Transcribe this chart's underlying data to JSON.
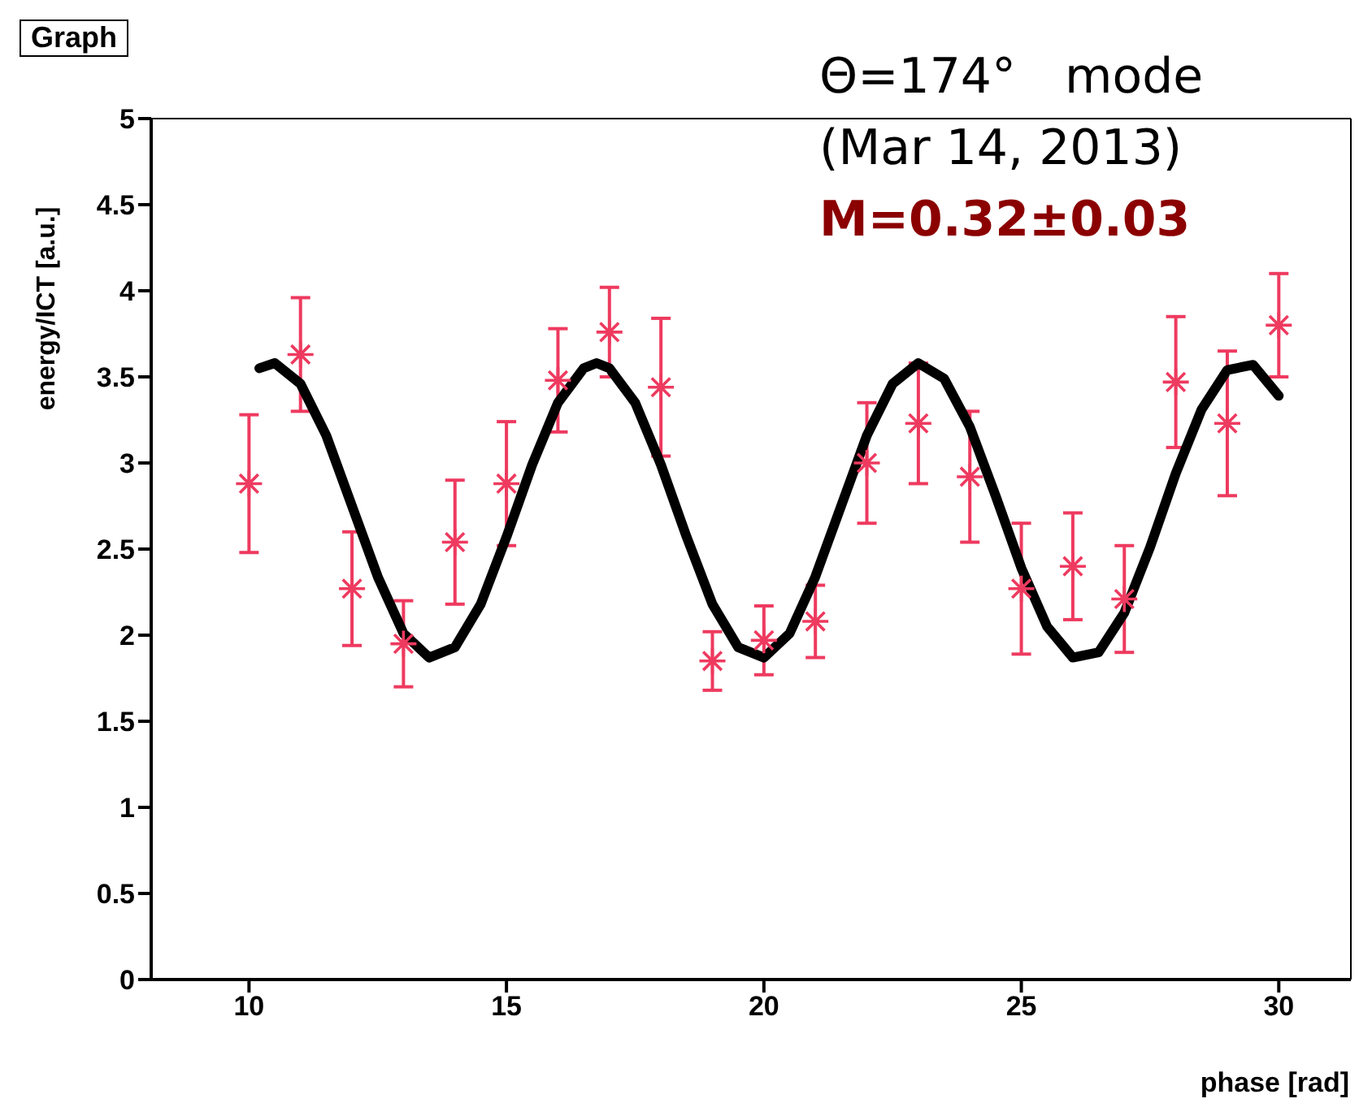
{
  "chart_data": {
    "type": "scatter",
    "title": "Graph",
    "xlabel": "phase [rad]",
    "ylabel": "energy/ICT [a.u.]",
    "annotations": [
      "Θ=174°　mode",
      "(Mar 14, 2013)",
      "M=0.32±0.03"
    ],
    "x": [
      10,
      11,
      12,
      13,
      14,
      15,
      16,
      17,
      18,
      19,
      20,
      21,
      22,
      23,
      24,
      25,
      26,
      27,
      28,
      29,
      30
    ],
    "series": [
      {
        "marker": "cross",
        "color": "#ee3a5f",
        "values": [
          2.88,
          3.63,
          2.27,
          1.95,
          2.54,
          2.88,
          3.48,
          3.76,
          3.44,
          1.85,
          1.97,
          2.08,
          3.0,
          3.23,
          2.92,
          2.27,
          2.4,
          2.21,
          3.47,
          3.23,
          3.8
        ],
        "errors": [
          0.4,
          0.33,
          0.33,
          0.25,
          0.36,
          0.36,
          0.3,
          0.26,
          0.4,
          0.17,
          0.2,
          0.21,
          0.35,
          0.35,
          0.38,
          0.38,
          0.31,
          0.31,
          0.38,
          0.42,
          0.3
        ]
      },
      {
        "type": "line",
        "color": "#000000",
        "x": [
          10.2,
          10.5,
          11,
          11.5,
          12,
          12.5,
          13,
          13.5,
          14,
          14.5,
          15,
          15.5,
          16,
          16.5,
          16.75,
          17,
          17.5,
          18,
          18.5,
          19,
          19.5,
          20,
          20.5,
          21,
          21.5,
          22,
          22.5,
          23,
          23.5,
          24,
          24.5,
          25,
          25.5,
          26,
          26.5,
          27,
          27.5,
          28,
          28.5,
          29,
          29.5,
          30
        ],
        "values": [
          3.55,
          3.58,
          3.46,
          3.16,
          2.75,
          2.34,
          2.01,
          1.87,
          1.93,
          2.18,
          2.57,
          2.99,
          3.35,
          3.55,
          3.58,
          3.55,
          3.35,
          2.99,
          2.57,
          2.18,
          1.93,
          1.87,
          2.01,
          2.34,
          2.75,
          3.16,
          3.46,
          3.58,
          3.49,
          3.21,
          2.81,
          2.39,
          2.05,
          1.87,
          1.9,
          2.13,
          2.51,
          2.94,
          3.31,
          3.54,
          3.57,
          3.39
        ]
      }
    ],
    "xlim": [
      8.1,
      31.4
    ],
    "xticks": [
      10,
      15,
      20,
      25,
      30
    ],
    "ylim": [
      0,
      5
    ],
    "yticks": [
      0,
      0.5,
      1,
      1.5,
      2,
      2.5,
      3,
      3.5,
      4,
      4.5,
      5
    ],
    "marker": "none",
    "line_style": "solid",
    "grid": false,
    "legend": false
  }
}
